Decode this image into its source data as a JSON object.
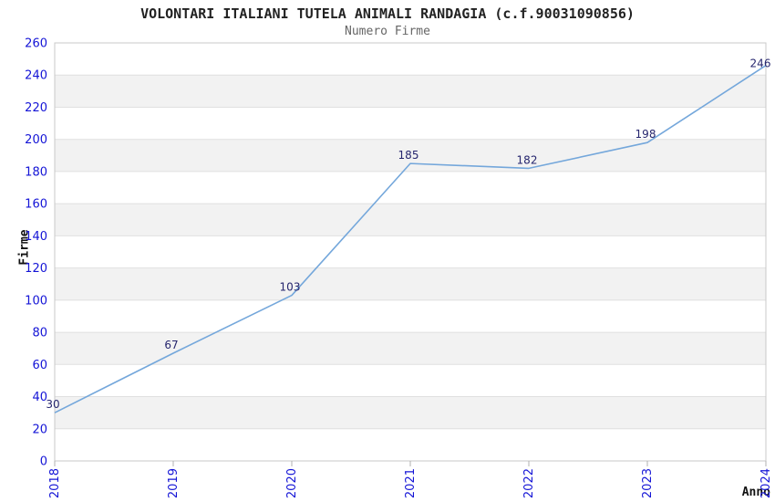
{
  "chart_data": {
    "type": "line",
    "title": "VOLONTARI ITALIANI TUTELA ANIMALI RANDAGIA (c.f.90031090856)",
    "subtitle": "Numero Firme",
    "xlabel": "Anno",
    "ylabel": "Firme",
    "categories": [
      "2018",
      "2019",
      "2020",
      "2021",
      "2022",
      "2023",
      "2024"
    ],
    "values": [
      30,
      67,
      103,
      185,
      182,
      198,
      246
    ],
    "ylim": [
      0,
      260
    ],
    "y_tick_step": 20,
    "grid": true,
    "legend": "none",
    "band_shading": "alternating horizontal stripes per 20 units",
    "colors": {
      "line": "#74a7db",
      "tick_label": "#1414d6",
      "data_label": "#26266e",
      "stripe": "#f2f2f2",
      "grid_line": "#e0e0e0",
      "plot_border": "#c8c8c8",
      "tick_mark": "#b0b0b0",
      "title": "#222222",
      "subtitle": "#666666",
      "axis_title": "#111111",
      "background": "#ffffff"
    }
  }
}
